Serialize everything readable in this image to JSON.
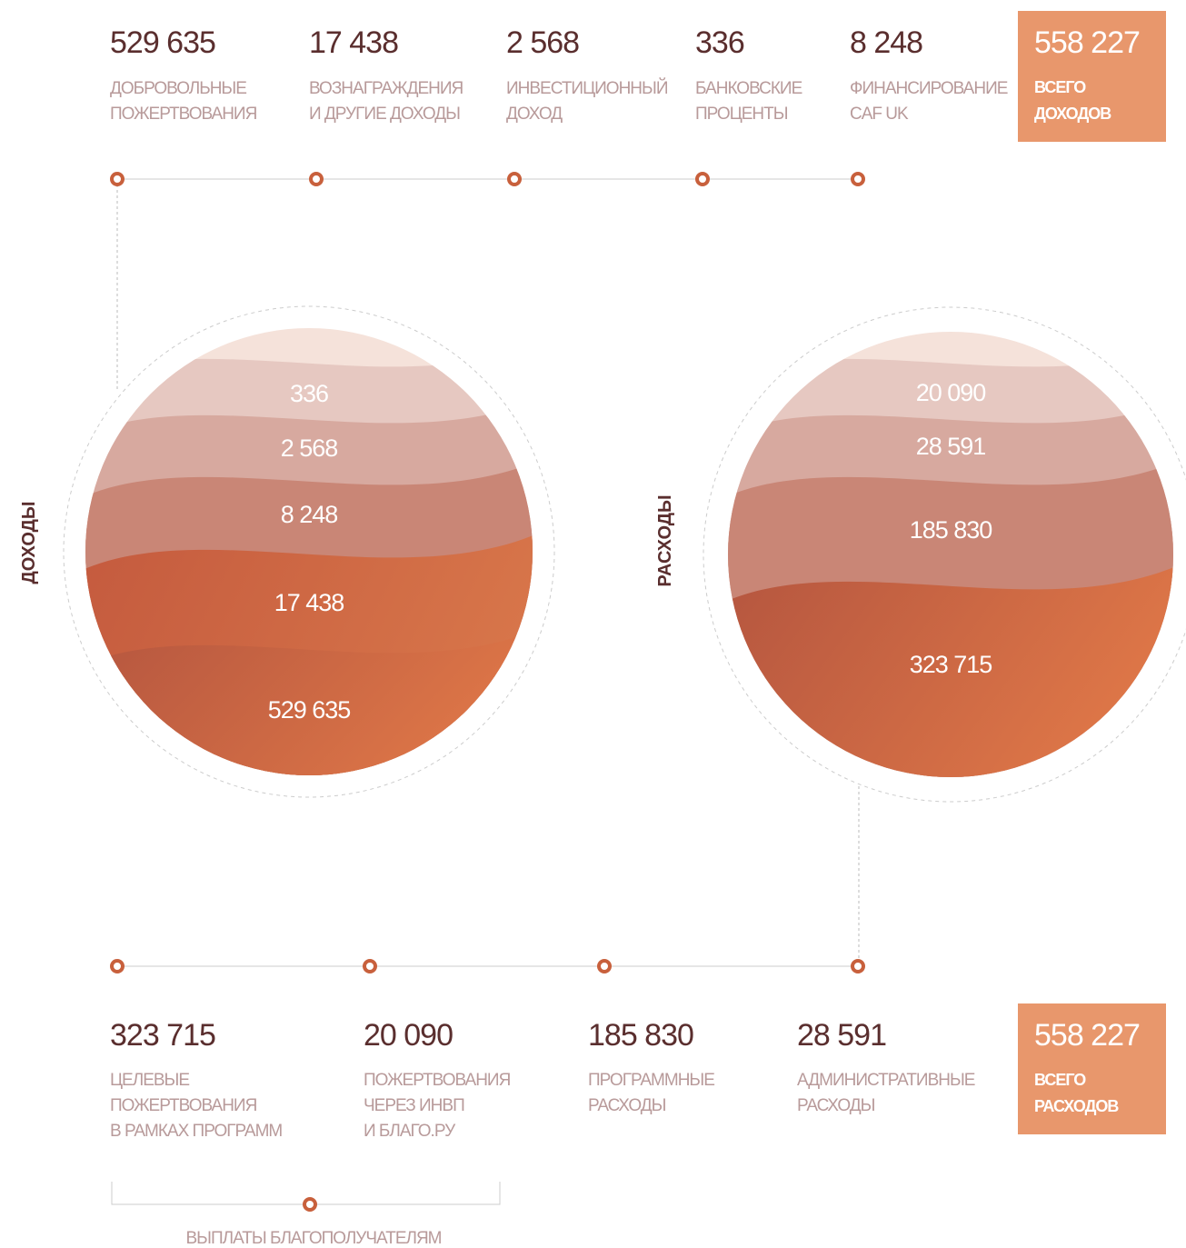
{
  "income": {
    "side_label": "ДОХОДЫ",
    "items": [
      {
        "value": "529 635",
        "label": [
          "ДОБРОВОЛЬНЫЕ",
          "ПОЖЕРТВОВАНИЯ"
        ]
      },
      {
        "value": "17 438",
        "label": [
          "ВОЗНАГРАЖДЕНИЯ",
          "И ДРУГИЕ ДОХОДЫ"
        ]
      },
      {
        "value": "2 568",
        "label": [
          "ИНВЕСТИЦИОННЫЙ",
          "ДОХОД"
        ]
      },
      {
        "value": "336",
        "label": [
          "БАНКОВСКИЕ",
          "ПРОЦЕНТЫ"
        ]
      },
      {
        "value": "8 248",
        "label": [
          "ФИНАНСИРОВАНИЕ",
          "CAF UK"
        ]
      }
    ],
    "total": {
      "value": "558 227",
      "label": [
        "ВСЕГО",
        "ДОХОДОВ"
      ]
    }
  },
  "expenses": {
    "side_label": "РАСХОДЫ",
    "items": [
      {
        "value": "323 715",
        "label": [
          "ЦЕЛЕВЫЕ",
          "ПОЖЕРТВОВАНИЯ",
          " В РАМКАХ ПРОГРАММ"
        ]
      },
      {
        "value": "20 090",
        "label": [
          "ПОЖЕРТВОВАНИЯ",
          "ЧЕРЕЗ ИНВП",
          "И БЛАГО.РУ"
        ]
      },
      {
        "value": "185 830",
        "label": [
          "ПРОГРАММНЫЕ",
          "РАСХОДЫ"
        ]
      },
      {
        "value": "28 591",
        "label": [
          "АДМИНИСТРАТИВНЫЕ",
          "РАСХОДЫ"
        ]
      }
    ],
    "total": {
      "value": "558 227",
      "label": [
        "ВСЕГО",
        "РАСХОДОВ"
      ]
    },
    "bracket_label": "ВЫПЛАТЫ БЛАГОПОЛУЧАТЕЛЯМ"
  }
}
